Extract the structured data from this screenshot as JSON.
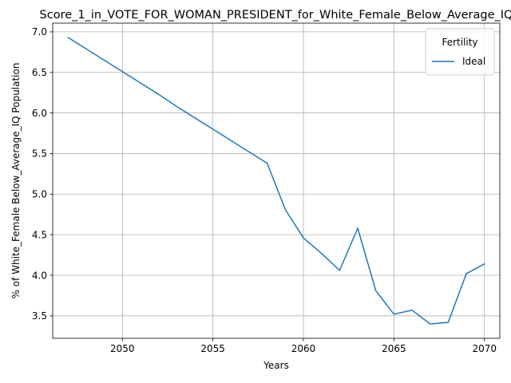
{
  "chart_data": {
    "type": "line",
    "title": "Score_1_in_VOTE_FOR_WOMAN_PRESIDENT_for_White_Female_Below_Average_IQ",
    "xlabel": "Years",
    "ylabel": "% of White_Female Below_Average_IQ Population",
    "xlim": [
      2046.15,
      2070.85
    ],
    "ylim": [
      3.223,
      7.107
    ],
    "xticks": [
      2050,
      2055,
      2060,
      2065,
      2070
    ],
    "yticks": [
      3.5,
      4.0,
      4.5,
      5.0,
      5.5,
      6.0,
      6.5,
      7.0
    ],
    "ytick_labels": [
      "3.5",
      "4.0",
      "4.5",
      "5.0",
      "5.5",
      "6.0",
      "6.5",
      "7.0"
    ],
    "grid": true,
    "legend": {
      "title": "Fertility",
      "placement": "top-right"
    },
    "series": [
      {
        "name": "Ideal",
        "color": "#1f77b4",
        "x": [
          2047,
          2048,
          2049,
          2050,
          2051,
          2052,
          2053,
          2054,
          2055,
          2056,
          2057,
          2058,
          2059,
          2060,
          2061,
          2062,
          2063,
          2064,
          2065,
          2066,
          2067,
          2068,
          2069,
          2070
        ],
        "y": [
          6.93,
          6.79,
          6.65,
          6.51,
          6.37,
          6.23,
          6.08,
          5.94,
          5.8,
          5.66,
          5.52,
          5.38,
          4.81,
          4.46,
          4.27,
          4.06,
          4.58,
          3.81,
          3.52,
          3.57,
          3.4,
          3.42,
          4.02,
          4.14
        ]
      }
    ]
  }
}
